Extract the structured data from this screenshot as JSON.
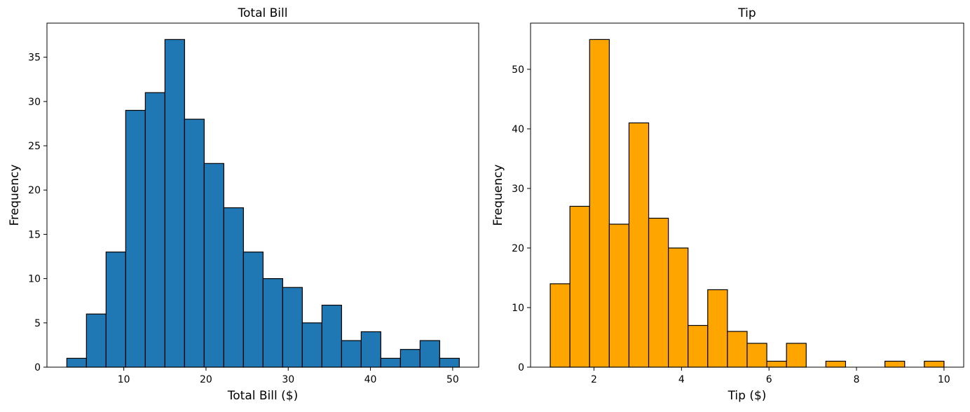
{
  "chart_data": [
    {
      "type": "bar",
      "title": "Total Bill",
      "xlabel": "Total Bill ($)",
      "ylabel": "Frequency",
      "color": "#1f77b4",
      "edgecolor": "#000000",
      "xlim": [
        0.655,
        53.165
      ],
      "ylim": [
        0,
        38.85
      ],
      "xticks": [
        10,
        20,
        30,
        40,
        50
      ],
      "yticks": [
        0,
        5,
        10,
        15,
        20,
        25,
        30,
        35
      ],
      "grid": false,
      "bin_edges": [
        3.07,
        5.457,
        7.844,
        10.231,
        12.618,
        15.005,
        17.392,
        19.779,
        22.166,
        24.553,
        26.94,
        29.327,
        31.714,
        34.101,
        36.488,
        38.875,
        41.262,
        43.649,
        46.036,
        48.423,
        50.81
      ],
      "values": [
        1,
        6,
        13,
        29,
        31,
        37,
        28,
        23,
        18,
        13,
        10,
        9,
        5,
        7,
        3,
        4,
        1,
        2,
        3,
        1
      ]
    },
    {
      "type": "bar",
      "title": "Tip",
      "xlabel": "Tip ($)",
      "ylabel": "Frequency",
      "color": "#ffa500",
      "edgecolor": "#000000",
      "xlim": [
        0.55,
        10.45
      ],
      "ylim": [
        0,
        57.75
      ],
      "xticks": [
        2,
        4,
        6,
        8,
        10
      ],
      "yticks": [
        0,
        10,
        20,
        30,
        40,
        50
      ],
      "grid": false,
      "bin_edges": [
        1.0,
        1.45,
        1.9,
        2.35,
        2.8,
        3.25,
        3.7,
        4.15,
        4.6,
        5.05,
        5.5,
        5.95,
        6.4,
        6.85,
        7.3,
        7.75,
        8.2,
        8.65,
        9.1,
        9.55,
        10.0
      ],
      "values": [
        14,
        27,
        55,
        24,
        41,
        25,
        20,
        7,
        13,
        6,
        4,
        1,
        4,
        0,
        1,
        0,
        0,
        1,
        0,
        1
      ]
    }
  ]
}
